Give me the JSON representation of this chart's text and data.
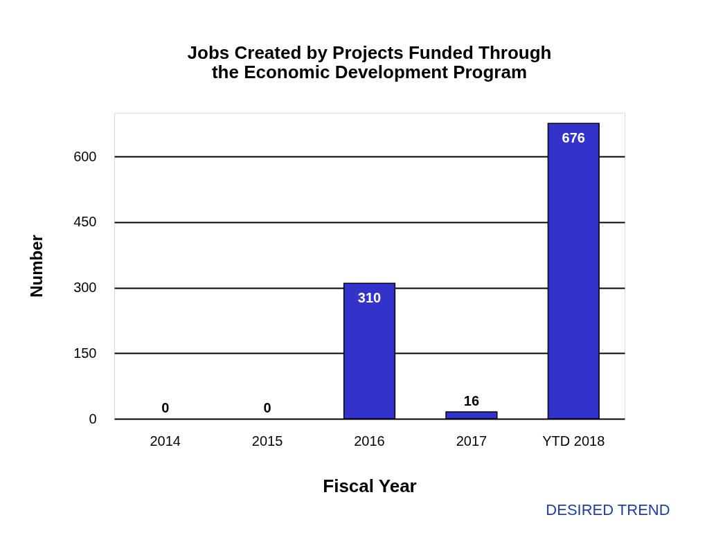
{
  "chart_data": {
    "type": "bar",
    "title": "Jobs Created by Projects Funded Through the Economic Development Program",
    "xlabel": "Fiscal Year",
    "ylabel": "Number",
    "categories": [
      "2014",
      "2015",
      "2016",
      "2017",
      "YTD 2018"
    ],
    "values": [
      0,
      0,
      310,
      16,
      676
    ],
    "color": "#3333cc",
    "ylim": [
      0,
      700
    ],
    "yticks": [
      0,
      150,
      300,
      450,
      600
    ],
    "grid": "y",
    "data_labels": true,
    "annotations": [
      "DESIRED TREND"
    ]
  }
}
